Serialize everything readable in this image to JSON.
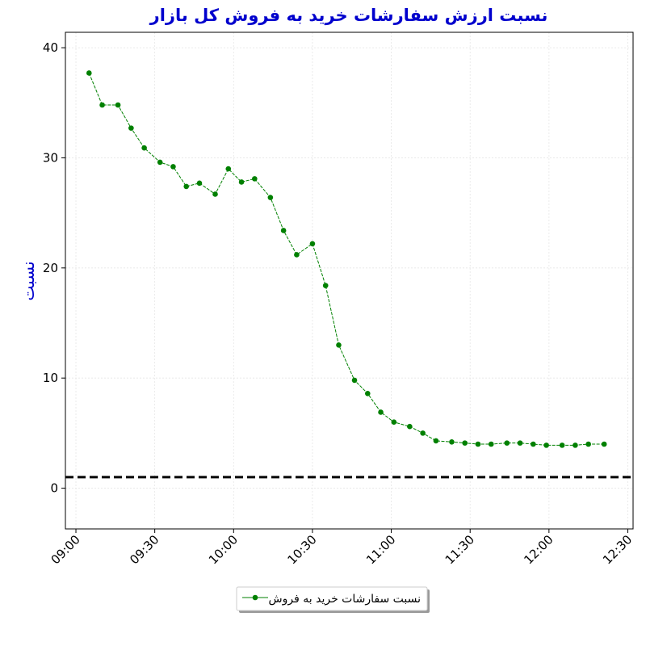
{
  "chart_data": {
    "type": "line",
    "title": "نسبت ارزش سفارشات خرید به فروش کل بازار",
    "y_label": "نسبت",
    "x": [
      "09:05",
      "09:10",
      "09:16",
      "09:21",
      "09:26",
      "09:32",
      "09:37",
      "09:42",
      "09:47",
      "09:53",
      "09:58",
      "10:03",
      "10:08",
      "10:14",
      "10:19",
      "10:24",
      "10:30",
      "10:35",
      "10:40",
      "10:46",
      "10:51",
      "10:56",
      "11:01",
      "11:07",
      "11:12",
      "11:17",
      "11:23",
      "11:28",
      "11:33",
      "11:38",
      "11:44",
      "11:49",
      "11:54",
      "11:59",
      "12:05",
      "12:10",
      "12:15",
      "12:21"
    ],
    "series": [
      {
        "name": "نسبت سفارشات خرید به فروش",
        "color": "#008000",
        "values": [
          37.7,
          34.8,
          34.8,
          32.7,
          30.9,
          29.6,
          29.2,
          27.4,
          27.7,
          26.7,
          29.0,
          27.8,
          28.1,
          26.4,
          23.4,
          21.2,
          22.2,
          18.4,
          13.0,
          9.8,
          8.6,
          6.9,
          6.0,
          5.6,
          5.0,
          4.3,
          4.2,
          4.1,
          4.0,
          4.0,
          4.1,
          4.1,
          4.0,
          3.9,
          3.9,
          3.9,
          4.0,
          4.0
        ]
      }
    ],
    "xlim": [
      "08:56",
      "12:32"
    ],
    "xticks": [
      "09:00",
      "09:30",
      "10:00",
      "10:30",
      "11:00",
      "11:30",
      "12:00",
      "12:30"
    ],
    "ylim": [
      -3.7,
      41.4
    ],
    "yticks": [
      0,
      10,
      20,
      30,
      40
    ],
    "hline": {
      "value": 1,
      "color": "#000000"
    },
    "grid": true,
    "legend": "bottom"
  }
}
